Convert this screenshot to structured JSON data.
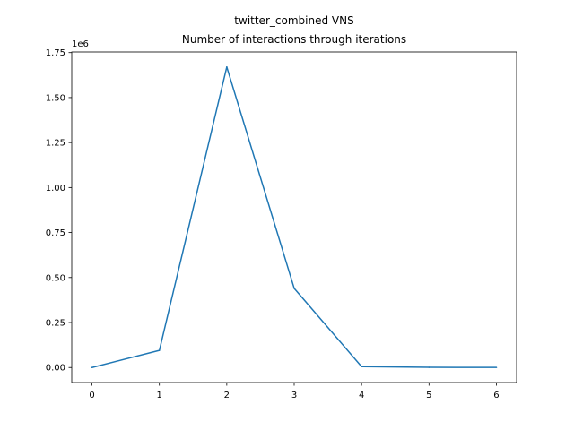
{
  "chart_data": {
    "type": "line",
    "title_lines": [
      "twitter_combined VNS",
      "Number of interactions through iterations"
    ],
    "xlabel": "",
    "ylabel": "",
    "y_offset_text": "1e6",
    "x": [
      0,
      1,
      2,
      3,
      4,
      5,
      6
    ],
    "series": [
      {
        "values": [
          0,
          95000,
          1670000,
          440000,
          5000,
          1000,
          500
        ]
      }
    ],
    "xlim": [
      -0.3,
      6.3
    ],
    "ylim": [
      -83500,
      1753500
    ],
    "x_ticks": [
      0,
      1,
      2,
      3,
      4,
      5,
      6
    ],
    "x_tick_labels": [
      "0",
      "1",
      "2",
      "3",
      "4",
      "5",
      "6"
    ],
    "y_ticks": [
      0,
      250000,
      500000,
      750000,
      1000000,
      1250000,
      1500000,
      1750000
    ],
    "y_tick_labels": [
      "0.00",
      "0.25",
      "0.50",
      "0.75",
      "1.00",
      "1.25",
      "1.50",
      "1.75"
    ],
    "grid": false,
    "line_color": "#1f77b4"
  }
}
